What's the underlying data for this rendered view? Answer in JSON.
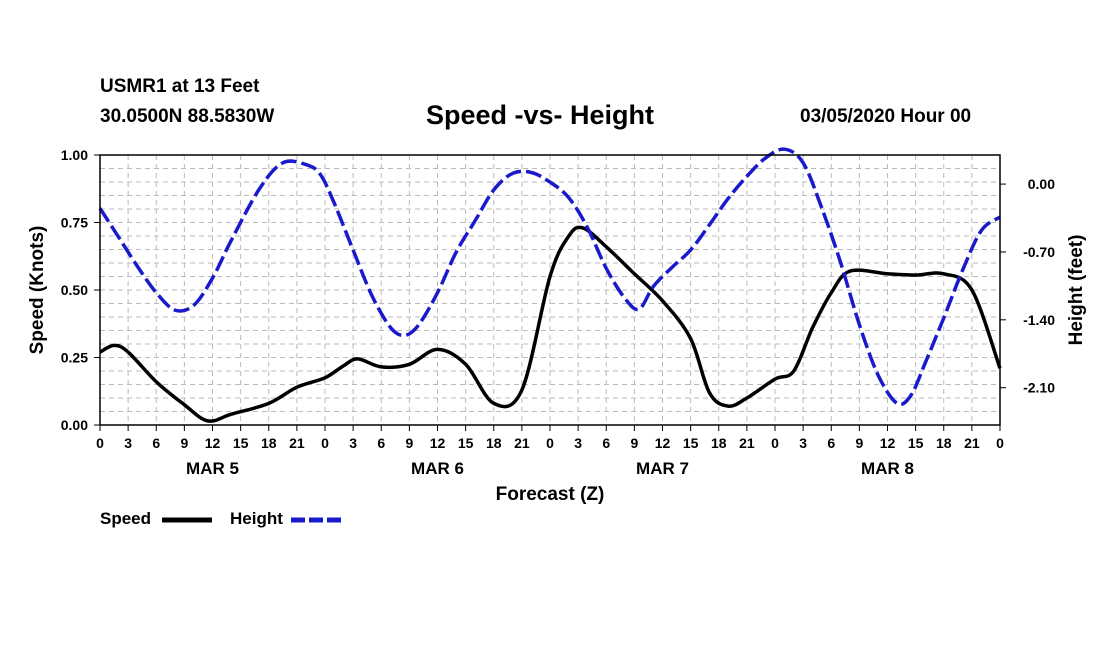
{
  "header": {
    "station": "USMR1 at 13 Feet",
    "coords": "30.0500N 88.5830W",
    "title": "Speed -vs- Height",
    "datetime": "03/05/2020 Hour 00"
  },
  "legend": {
    "speed_label": "Speed",
    "height_label": "Height"
  },
  "colors": {
    "speed": "#000000",
    "height": "#1a1acc",
    "grid": "#bbbbbb"
  },
  "chart_data": {
    "type": "line",
    "title": "Speed -vs- Height",
    "xlabel": "Forecast (Z)",
    "ylabel": "Speed (Knots)",
    "ylabel_right": "Height (feet)",
    "xlim": [
      0,
      96
    ],
    "ylim": [
      0,
      1.0
    ],
    "ylim_right": [
      -2.485,
      0.3
    ],
    "x_tick_labels": [
      "0",
      "3",
      "6",
      "9",
      "12",
      "15",
      "18",
      "21",
      "0",
      "3",
      "6",
      "9",
      "12",
      "15",
      "18",
      "21",
      "0",
      "3",
      "6",
      "9",
      "12",
      "15",
      "18",
      "21",
      "0",
      "3",
      "6",
      "9",
      "12",
      "15",
      "18",
      "21",
      "0"
    ],
    "day_labels": [
      {
        "label": "MAR 5",
        "x": 12
      },
      {
        "label": "MAR 6",
        "x": 36
      },
      {
        "label": "MAR 7",
        "x": 60
      },
      {
        "label": "MAR 8",
        "x": 84
      }
    ],
    "y_ticks_left": [
      "0.00",
      "0.25",
      "0.50",
      "0.75",
      "1.00"
    ],
    "y_ticks_right": [
      "0.00",
      "-0.70",
      "-1.40",
      "-2.10"
    ],
    "grid": true,
    "legend_position": "bottom-left",
    "series": [
      {
        "name": "Speed",
        "axis": "left",
        "style": "solid",
        "points": [
          [
            0,
            0.27
          ],
          [
            1.5,
            0.295
          ],
          [
            3,
            0.27
          ],
          [
            6,
            0.16
          ],
          [
            9,
            0.075
          ],
          [
            11.5,
            0.015
          ],
          [
            14,
            0.04
          ],
          [
            18,
            0.08
          ],
          [
            21,
            0.14
          ],
          [
            24,
            0.175
          ],
          [
            26,
            0.22
          ],
          [
            27.5,
            0.245
          ],
          [
            30,
            0.215
          ],
          [
            33,
            0.225
          ],
          [
            36,
            0.28
          ],
          [
            39,
            0.225
          ],
          [
            42,
            0.08
          ],
          [
            45,
            0.13
          ],
          [
            48,
            0.55
          ],
          [
            50,
            0.7
          ],
          [
            51.5,
            0.73
          ],
          [
            54,
            0.66
          ],
          [
            57,
            0.56
          ],
          [
            60,
            0.46
          ],
          [
            63,
            0.32
          ],
          [
            65,
            0.12
          ],
          [
            67,
            0.07
          ],
          [
            69,
            0.1
          ],
          [
            72,
            0.17
          ],
          [
            74,
            0.2
          ],
          [
            76,
            0.36
          ],
          [
            78,
            0.49
          ],
          [
            80,
            0.57
          ],
          [
            84,
            0.56
          ],
          [
            87,
            0.555
          ],
          [
            90,
            0.56
          ],
          [
            93,
            0.5
          ],
          [
            96,
            0.21
          ]
        ]
      },
      {
        "name": "Height",
        "axis": "right",
        "style": "dashed",
        "points": [
          [
            0,
            -0.25
          ],
          [
            2,
            -0.55
          ],
          [
            4,
            -0.85
          ],
          [
            6,
            -1.12
          ],
          [
            8,
            -1.3
          ],
          [
            10,
            -1.25
          ],
          [
            12,
            -0.97
          ],
          [
            14,
            -0.58
          ],
          [
            17,
            -0.05
          ],
          [
            19.5,
            0.22
          ],
          [
            22,
            0.2
          ],
          [
            23.5,
            0.1
          ],
          [
            25,
            -0.2
          ],
          [
            27,
            -0.68
          ],
          [
            29,
            -1.15
          ],
          [
            31,
            -1.48
          ],
          [
            32.5,
            -1.56
          ],
          [
            34,
            -1.45
          ],
          [
            36,
            -1.12
          ],
          [
            38,
            -0.7
          ],
          [
            40,
            -0.38
          ],
          [
            42,
            -0.06
          ],
          [
            44,
            0.11
          ],
          [
            46,
            0.12
          ],
          [
            48,
            0.02
          ],
          [
            50,
            -0.14
          ],
          [
            52,
            -0.45
          ],
          [
            54,
            -0.87
          ],
          [
            56,
            -1.18
          ],
          [
            57.5,
            -1.29
          ],
          [
            59,
            -1.06
          ],
          [
            61,
            -0.86
          ],
          [
            63,
            -0.68
          ],
          [
            65,
            -0.42
          ],
          [
            67,
            -0.15
          ],
          [
            69,
            0.08
          ],
          [
            71,
            0.27
          ],
          [
            73,
            0.36
          ],
          [
            75,
            0.22
          ],
          [
            77,
            -0.25
          ],
          [
            79,
            -0.81
          ],
          [
            81,
            -1.45
          ],
          [
            83,
            -1.97
          ],
          [
            85,
            -2.26
          ],
          [
            86.5,
            -2.18
          ],
          [
            88,
            -1.85
          ],
          [
            90,
            -1.38
          ],
          [
            92,
            -0.89
          ],
          [
            94,
            -0.48
          ],
          [
            96,
            -0.34
          ]
        ]
      }
    ]
  }
}
